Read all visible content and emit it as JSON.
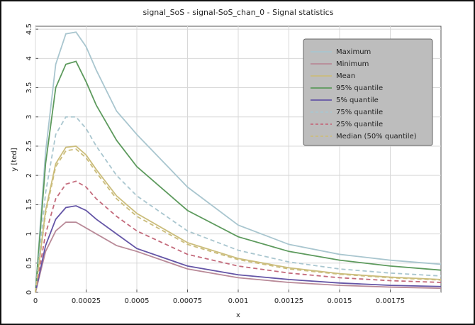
{
  "chart_data": {
    "type": "line",
    "title": "signal_SoS - signal-SoS_chan_0 - Signal statistics",
    "x_label": "x",
    "y_label": "y [ted]",
    "x": [
      0,
      5e-05,
      0.0001,
      0.00015,
      0.0002,
      0.00025,
      0.0003,
      0.0004,
      0.0005,
      0.00075,
      0.001,
      0.00125,
      0.0015,
      0.00175,
      0.002
    ],
    "series": [
      {
        "name": "Maximum",
        "color": "#a9c6cf",
        "dashed": false,
        "values": [
          0,
          2.4,
          3.9,
          4.42,
          4.45,
          4.2,
          3.8,
          3.1,
          2.7,
          1.8,
          1.15,
          0.82,
          0.65,
          0.55,
          0.48
        ]
      },
      {
        "name": "Minimum",
        "color": "#b98a98",
        "dashed": false,
        "values": [
          0,
          0.7,
          1.05,
          1.2,
          1.2,
          1.1,
          1.0,
          0.8,
          0.7,
          0.4,
          0.25,
          0.17,
          0.12,
          0.09,
          0.07
        ]
      },
      {
        "name": "Mean",
        "color": "#cbbd7c",
        "dashed": false,
        "values": [
          0,
          1.4,
          2.2,
          2.48,
          2.5,
          2.35,
          2.1,
          1.65,
          1.35,
          0.85,
          0.58,
          0.42,
          0.32,
          0.26,
          0.22
        ]
      },
      {
        "name": "95% quantile",
        "color": "#5d9a5d",
        "dashed": false,
        "values": [
          0,
          2.2,
          3.5,
          3.9,
          3.95,
          3.6,
          3.2,
          2.6,
          2.15,
          1.4,
          0.95,
          0.7,
          0.55,
          0.45,
          0.38
        ]
      },
      {
        "name": "5% quantile",
        "color": "#6455a6",
        "dashed": false,
        "values": [
          0,
          0.8,
          1.25,
          1.45,
          1.48,
          1.4,
          1.25,
          1.0,
          0.75,
          0.45,
          0.3,
          0.22,
          0.16,
          0.12,
          0.1
        ]
      },
      {
        "name": "75% quantile",
        "color": "#a9c6cf",
        "dashed": true,
        "values": [
          0,
          1.7,
          2.7,
          3.0,
          3.0,
          2.8,
          2.5,
          2.0,
          1.65,
          1.05,
          0.72,
          0.52,
          0.4,
          0.33,
          0.28
        ]
      },
      {
        "name": "25% quantile",
        "color": "#c46b7c",
        "dashed": true,
        "values": [
          0,
          1.0,
          1.6,
          1.85,
          1.9,
          1.8,
          1.6,
          1.3,
          1.05,
          0.65,
          0.45,
          0.33,
          0.25,
          0.2,
          0.17
        ]
      },
      {
        "name": "Median (50% quantile)",
        "color": "#cbbd7c",
        "dashed": true,
        "values": [
          0,
          1.35,
          2.15,
          2.42,
          2.45,
          2.3,
          2.05,
          1.6,
          1.3,
          0.82,
          0.56,
          0.4,
          0.31,
          0.25,
          0.21
        ]
      }
    ],
    "xlim": [
      0,
      0.002
    ],
    "ylim": [
      0,
      4.55
    ],
    "xticks": [
      0,
      0.00025,
      0.0005,
      0.00075,
      0.001,
      0.00125,
      0.0015,
      0.00175
    ],
    "yticks": [
      0,
      0.5,
      1,
      1.5,
      2,
      2.5,
      3,
      3.5,
      4,
      4.5
    ],
    "grid": true,
    "legend": "upper right"
  }
}
